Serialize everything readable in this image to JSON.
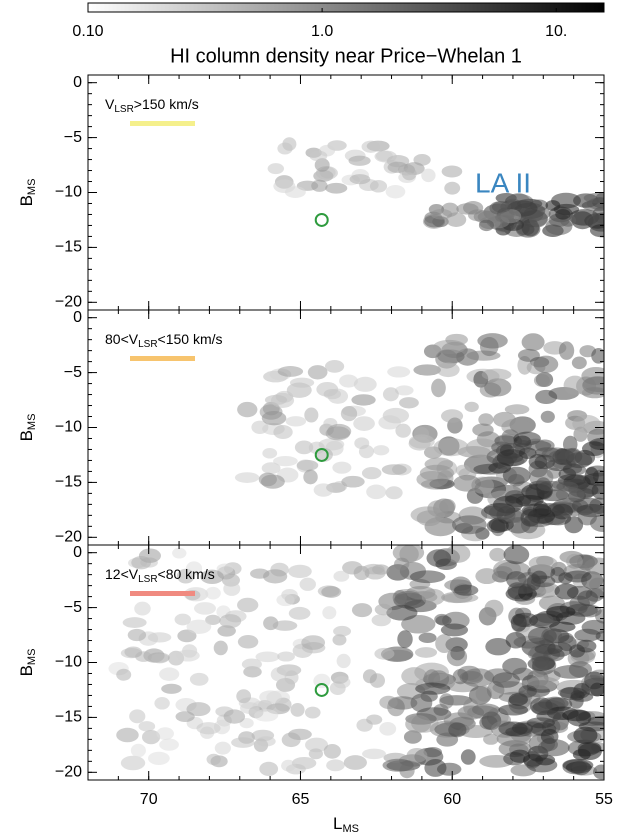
{
  "chart_data": {
    "type": "map",
    "title": "HI column density near Price−Whelan 1",
    "colorbar": {
      "lim": [
        0.1,
        16
      ],
      "log": true,
      "ticks": [
        {
          "value": 0.1,
          "label": "0.10"
        },
        {
          "value": 1,
          "label": "1.0"
        },
        {
          "value": 10,
          "label": "10."
        }
      ]
    },
    "xlabel": "L",
    "xlabel_sub": "MS",
    "xlim": [
      72,
      55
    ],
    "xticks": [
      70,
      65,
      60,
      55
    ],
    "panels": [
      {
        "ylabel": "B",
        "ylabel_sub": "MS",
        "ylim": [
          -20.7,
          0.7
        ],
        "yticks": [
          0,
          {
            "value": -5,
            "label": "−5"
          },
          {
            "value": -10,
            "label": "−10"
          },
          {
            "value": -15,
            "label": "−15"
          },
          {
            "value": -20,
            "label": "−20"
          }
        ],
        "label_parts": [
          "V",
          "LSR",
          ">150 km/s"
        ],
        "label_color": "#f5f08c",
        "marker": {
          "x": 64.3,
          "y": -12.5,
          "color": "#2e9b3e"
        },
        "annotation": "LA II",
        "annotation_color": "#3a86c0"
      },
      {
        "ylabel": "B",
        "ylabel_sub": "MS",
        "ylim": [
          -20.7,
          0.7
        ],
        "yticks": [
          0,
          {
            "value": -5,
            "label": "−5"
          },
          {
            "value": -10,
            "label": "−10"
          },
          {
            "value": -15,
            "label": "−15"
          },
          {
            "value": -20,
            "label": "−20"
          }
        ],
        "label_parts": [
          "80<V",
          "LSR",
          "<150 km/s"
        ],
        "label_color": "#f7c46e",
        "marker": {
          "x": 64.3,
          "y": -12.5,
          "color": "#2e9b3e"
        }
      },
      {
        "ylabel": "B",
        "ylabel_sub": "MS",
        "ylim": [
          -20.7,
          0.7
        ],
        "yticks": [
          0,
          {
            "value": -5,
            "label": "−5"
          },
          {
            "value": -10,
            "label": "−10"
          },
          {
            "value": -15,
            "label": "−15"
          },
          {
            "value": -20,
            "label": "−20"
          }
        ],
        "label_parts": [
          "12<V",
          "LSR",
          "<80 km/s"
        ],
        "label_color": "#f08a80",
        "marker": {
          "x": 64.3,
          "y": -12.5,
          "color": "#2e9b3e"
        }
      }
    ]
  }
}
